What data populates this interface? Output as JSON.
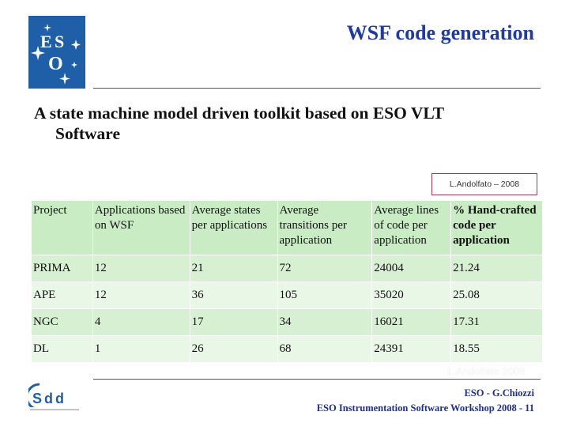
{
  "header": {
    "logo_text": "ESO",
    "title": "WSF code generation"
  },
  "subtitle": {
    "line1": "A state machine model driven toolkit based on ESO VLT",
    "line2": "Software"
  },
  "author_box": "L.Andolfato – 2008",
  "table": {
    "headers": [
      "Project",
      "Applications based on WSF",
      "Average states per applications",
      "Average transitions per application",
      "Average lines of code per application",
      "% Hand-crafted code per application"
    ],
    "rows": [
      [
        "PRIMA",
        "12",
        "21",
        "72",
        "24004",
        "21.24"
      ],
      [
        "APE",
        "12",
        "36",
        "105",
        "35020",
        "25.08"
      ],
      [
        "NGC",
        "4",
        "17",
        "34",
        "16021",
        "17.31"
      ],
      [
        "DL",
        "1",
        "26",
        "68",
        "24391",
        "18.55"
      ]
    ]
  },
  "watermark": "L.Andolfato 2008",
  "footer": {
    "logo_text": "Sdd",
    "line1": "ESO - G.Chiozzi",
    "line2": "ESO Instrumentation Software Workshop 2008 - 11"
  },
  "colors": {
    "title": "#1f3aa6",
    "logo_bg": "#1f5fa8",
    "header_row": "#c9ecc4",
    "row_a": "#d7f0d2",
    "row_b": "#e9f7e6",
    "footer_text": "#1f2f8a"
  }
}
